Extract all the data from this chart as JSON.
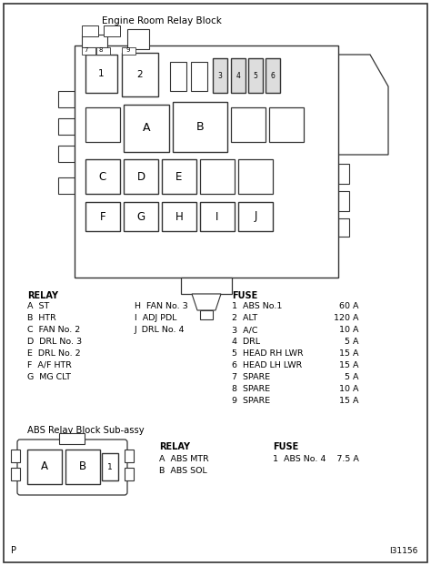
{
  "title": "Engine Room Relay Block",
  "subtitle2": "ABS Relay Block Sub-assy",
  "relay_left": [
    [
      "A",
      "ST"
    ],
    [
      "B",
      "HTR"
    ],
    [
      "C",
      "FAN No. 2"
    ],
    [
      "D",
      "DRL No. 3"
    ],
    [
      "E",
      "DRL No. 2"
    ],
    [
      "F",
      "A/F HTR"
    ],
    [
      "G",
      "MG CLT"
    ]
  ],
  "relay_right": [
    [
      "H",
      "FAN No. 3"
    ],
    [
      "I",
      "ADJ PDL"
    ],
    [
      "J",
      "DRL No. 4"
    ]
  ],
  "fuse_data": [
    [
      "1",
      "ABS No.1",
      "60 A"
    ],
    [
      "2",
      "ALT",
      "120 A"
    ],
    [
      "3",
      "A/C",
      "10 A"
    ],
    [
      "4",
      "DRL",
      "5 A"
    ],
    [
      "5",
      "HEAD RH LWR",
      "15 A"
    ],
    [
      "6",
      "HEAD LH LWR",
      "15 A"
    ],
    [
      "7",
      "SPARE",
      "5 A"
    ],
    [
      "8",
      "SPARE",
      "10 A"
    ],
    [
      "9",
      "SPARE",
      "15 A"
    ]
  ],
  "abs_relay": [
    [
      "A",
      "ABS MTR"
    ],
    [
      "B",
      "ABS SOL"
    ]
  ],
  "abs_fuse": [
    [
      "1",
      "ABS No. 4",
      "7.5 A"
    ]
  ],
  "page_label": "P",
  "doc_number": "I31156"
}
